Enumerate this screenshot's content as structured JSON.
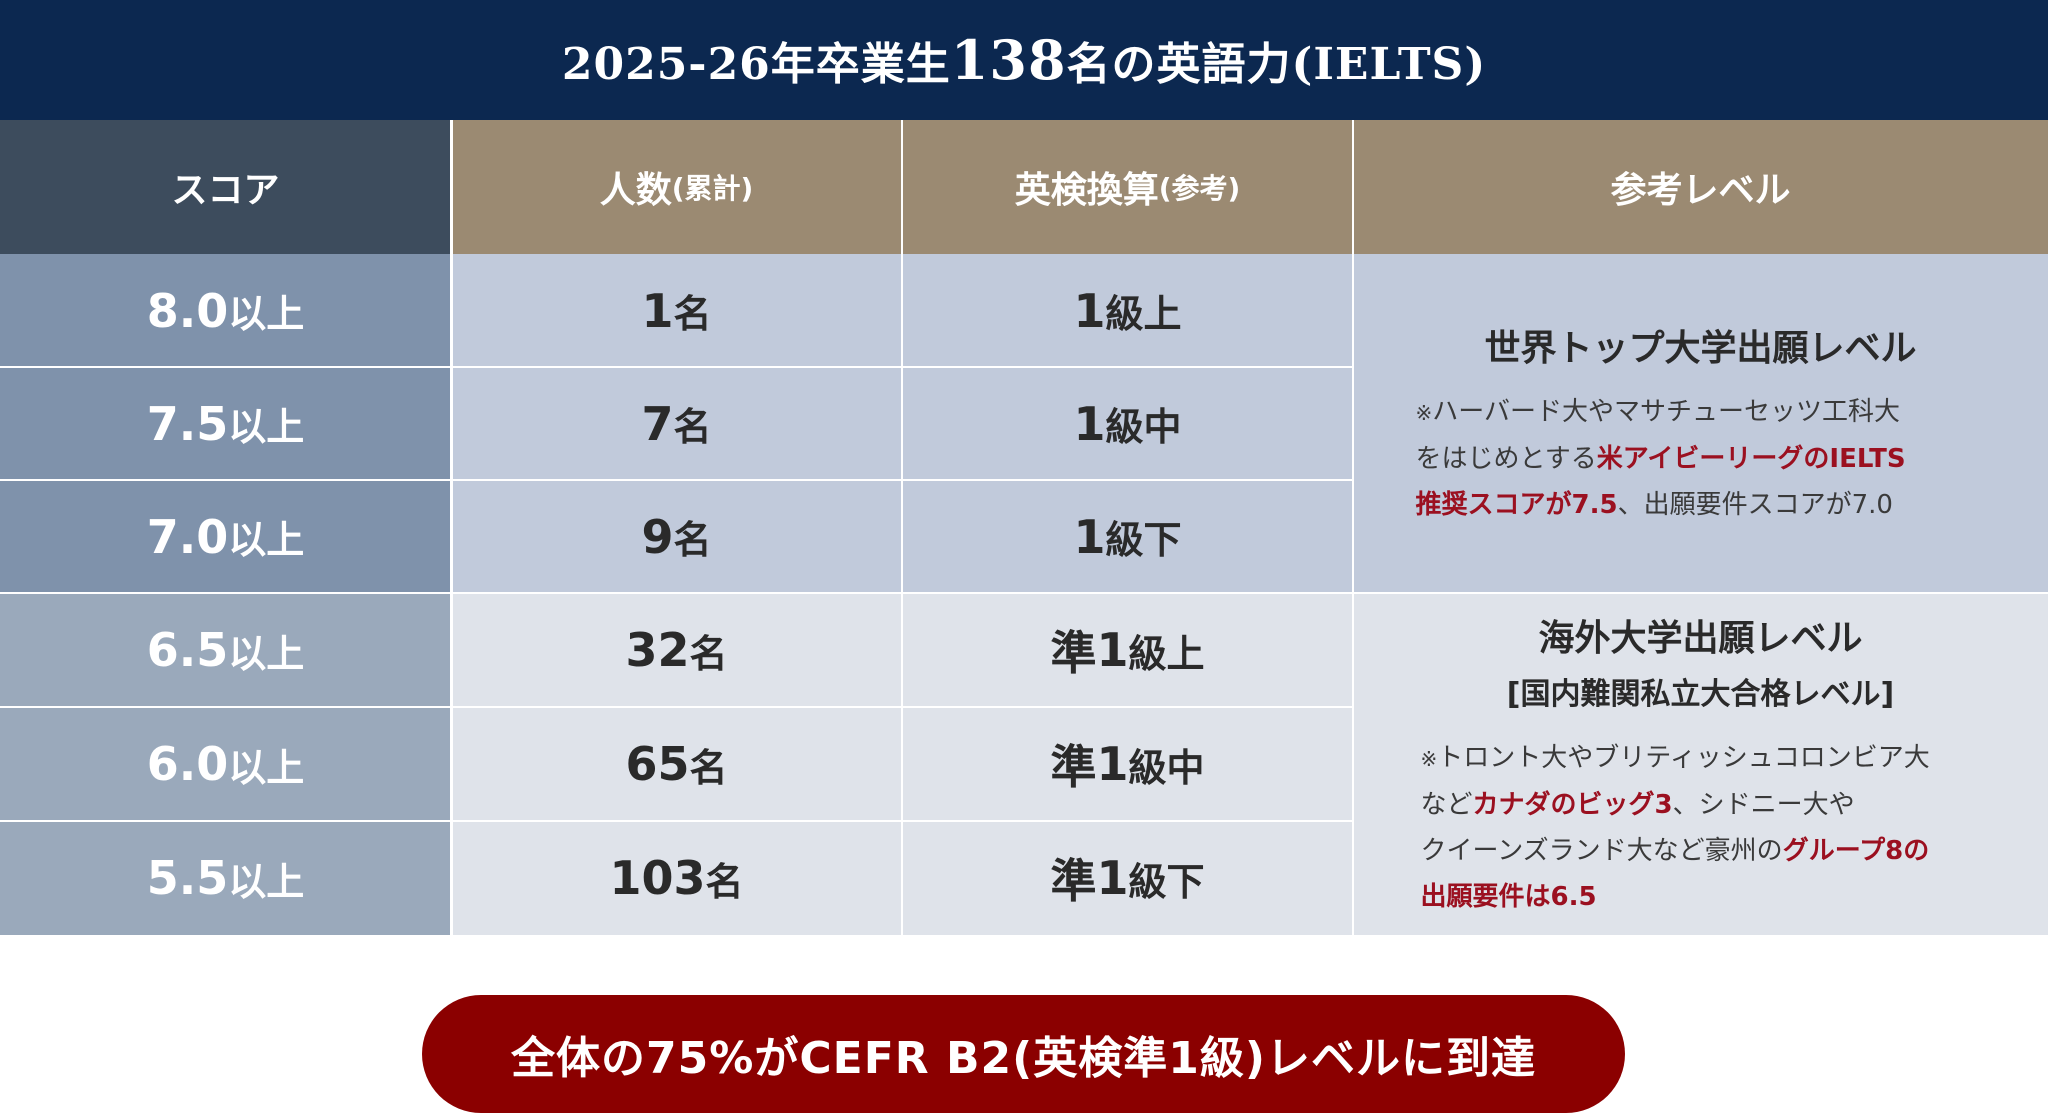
{
  "header": {
    "title_a": "2025-26年卒業生",
    "title_count": "138",
    "title_b": "名の英語力(IELTS)"
  },
  "columns": {
    "score": "スコア",
    "people": "人数",
    "people_note": "(累計)",
    "eiken": "英検換算",
    "eiken_note": "(参考)",
    "level": "参考レベル"
  },
  "rows": [
    {
      "score": "8.0",
      "score_suffix": "以上",
      "count": "1",
      "count_suffix": "名",
      "eiken_prefix": "",
      "eiken_grade": "1",
      "eiken_suffix": "級上"
    },
    {
      "score": "7.5",
      "score_suffix": "以上",
      "count": "7",
      "count_suffix": "名",
      "eiken_prefix": "",
      "eiken_grade": "1",
      "eiken_suffix": "級中"
    },
    {
      "score": "7.0",
      "score_suffix": "以上",
      "count": "9",
      "count_suffix": "名",
      "eiken_prefix": "",
      "eiken_grade": "1",
      "eiken_suffix": "級下"
    },
    {
      "score": "6.5",
      "score_suffix": "以上",
      "count": "32",
      "count_suffix": "名",
      "eiken_prefix": "準",
      "eiken_grade": "1",
      "eiken_suffix": "級上"
    },
    {
      "score": "6.0",
      "score_suffix": "以上",
      "count": "65",
      "count_suffix": "名",
      "eiken_prefix": "準",
      "eiken_grade": "1",
      "eiken_suffix": "級中"
    },
    {
      "score": "5.5",
      "score_suffix": "以上",
      "count": "103",
      "count_suffix": "名",
      "eiken_prefix": "準",
      "eiken_grade": "1",
      "eiken_suffix": "級下"
    }
  ],
  "levels": [
    {
      "title": "世界トップ大学出願レベル",
      "mark": "※",
      "note_1": "ハーバード大やマサチューセッツ工科大",
      "note_2a": "をはじめとする",
      "note_2_hl": "米アイビーリーグのIELTS",
      "note_3_hl": "推奨スコアが7.5",
      "note_3b": "、出願要件スコアが7.0"
    },
    {
      "title": "海外大学出願レベル",
      "subtitle": "[国内難関私立大合格レベル]",
      "mark": "※",
      "note_1": "トロント大やブリティッシュコロンビア大",
      "note_2a": "など",
      "note_2_hl": "カナダのビッグ3",
      "note_2b": "、シドニー大や",
      "note_3a": "クイーンズランド大など豪州の",
      "note_3_hl": "グループ8の",
      "note_4_hl": "出願要件は6.5"
    }
  ],
  "banner": {
    "text": "全体の75%がCEFR B2(英検準1級)レベルに到達"
  },
  "colors": {
    "header_bg": "#0c2850",
    "score_header_bg": "#3d4c5d",
    "tan_header_bg": "#9b8a72",
    "score_top_bg": "#7f92ab",
    "score_bottom_bg": "#9aa9bb",
    "cell_top_bg": "#c1cadb",
    "cell_bottom_bg": "#dfe3ea",
    "highlight": "#9b1020",
    "banner_bg": "#8b0000"
  }
}
